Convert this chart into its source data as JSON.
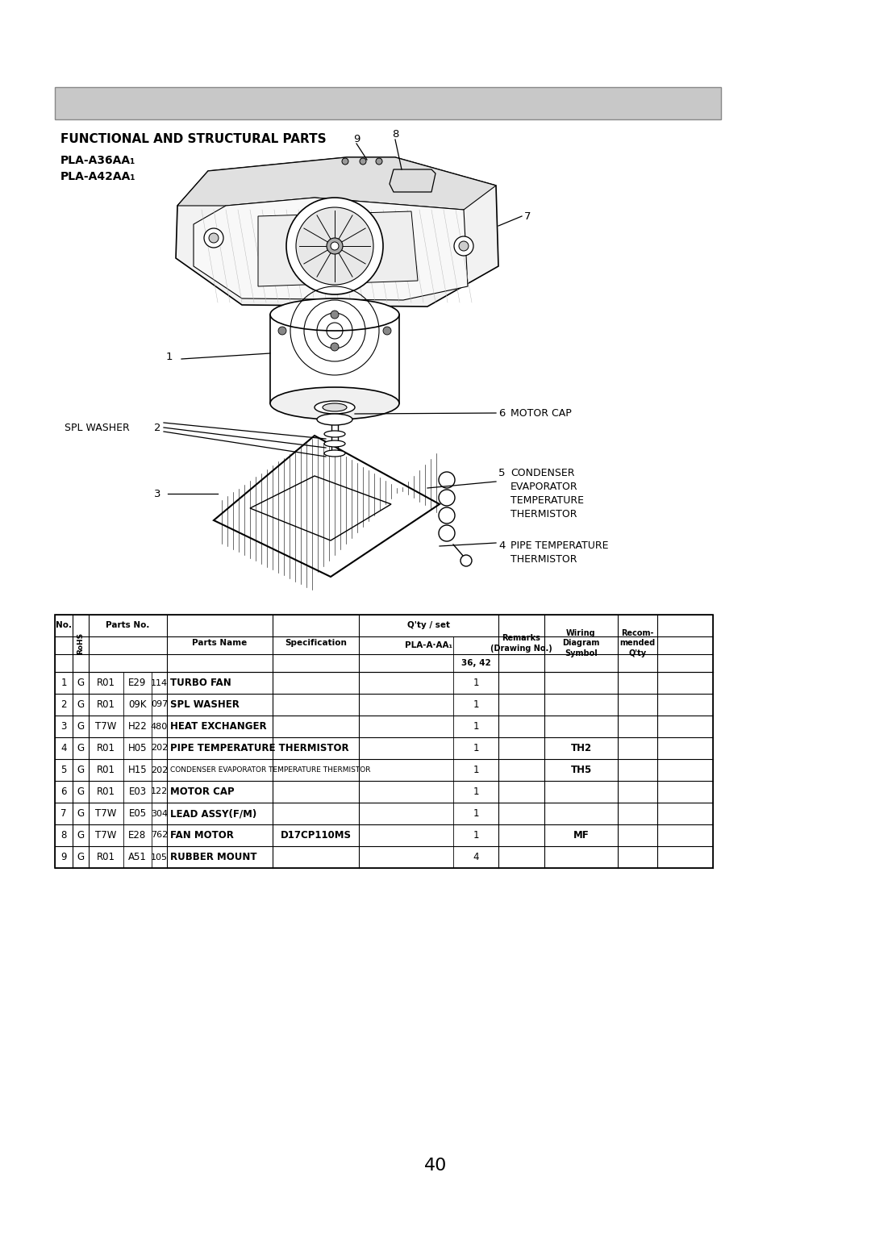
{
  "page_number": "40",
  "title_line1": "FUNCTIONAL AND STRUCTURAL PARTS",
  "title_line2": "PLA-A36AA₁",
  "title_line3": "PLA-A42AA₁",
  "header_bar_color": "#c8c8c8",
  "header_bar_edge": "#888888",
  "background_color": "#ffffff",
  "table_rows": [
    {
      "no": "1",
      "rohs": "G",
      "pno1": "R01",
      "pno2": "E29",
      "pno3": "114",
      "name": "TURBO FAN",
      "name_bold": true,
      "name_size": 8.5,
      "spec": "",
      "qty": "1",
      "wiring": ""
    },
    {
      "no": "2",
      "rohs": "G",
      "pno1": "R01",
      "pno2": "09K",
      "pno3": "097",
      "name": "SPL WASHER",
      "name_bold": true,
      "name_size": 8.5,
      "spec": "",
      "qty": "1",
      "wiring": ""
    },
    {
      "no": "3",
      "rohs": "G",
      "pno1": "T7W",
      "pno2": "H22",
      "pno3": "480",
      "name": "HEAT EXCHANGER",
      "name_bold": true,
      "name_size": 8.5,
      "spec": "",
      "qty": "1",
      "wiring": ""
    },
    {
      "no": "4",
      "rohs": "G",
      "pno1": "R01",
      "pno2": "H05",
      "pno3": "202",
      "name": "PIPE TEMPERATURE THERMISTOR",
      "name_bold": true,
      "name_size": 8.5,
      "spec": "",
      "qty": "1",
      "wiring": "TH2"
    },
    {
      "no": "5",
      "rohs": "G",
      "pno1": "R01",
      "pno2": "H15",
      "pno3": "202",
      "name": "CONDENSER EVAPORATOR TEMPERATURE THERMISTOR",
      "name_bold": false,
      "name_size": 6.5,
      "spec": "",
      "qty": "1",
      "wiring": "TH5"
    },
    {
      "no": "6",
      "rohs": "G",
      "pno1": "R01",
      "pno2": "E03",
      "pno3": "122",
      "name": "MOTOR CAP",
      "name_bold": true,
      "name_size": 8.5,
      "spec": "",
      "qty": "1",
      "wiring": ""
    },
    {
      "no": "7",
      "rohs": "G",
      "pno1": "T7W",
      "pno2": "E05",
      "pno3": "304",
      "name": "LEAD ASSY(F/M)",
      "name_bold": true,
      "name_size": 8.5,
      "spec": "",
      "qty": "1",
      "wiring": ""
    },
    {
      "no": "8",
      "rohs": "G",
      "pno1": "T7W",
      "pno2": "E28",
      "pno3": "762",
      "name": "FAN MOTOR",
      "name_bold": true,
      "name_size": 8.5,
      "spec": "D17CP110MS",
      "qty": "1",
      "wiring": "MF"
    },
    {
      "no": "9",
      "rohs": "G",
      "pno1": "R01",
      "pno2": "A51",
      "pno3": "105",
      "name": "RUBBER MOUNT",
      "name_bold": true,
      "name_size": 8.5,
      "spec": "",
      "qty": "4",
      "wiring": ""
    }
  ]
}
